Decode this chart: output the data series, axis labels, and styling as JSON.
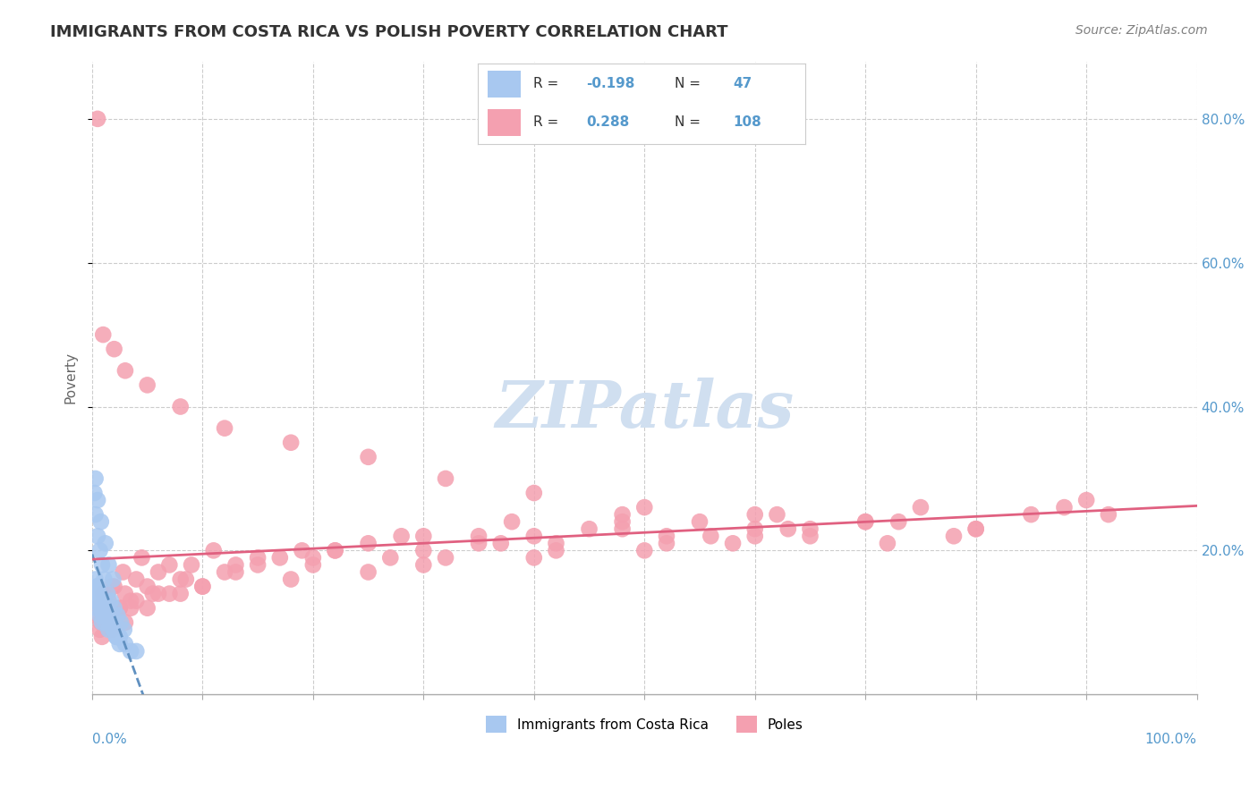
{
  "title": "IMMIGRANTS FROM COSTA RICA VS POLISH POVERTY CORRELATION CHART",
  "source": "Source: ZipAtlas.com",
  "ylabel": "Poverty",
  "blue_R": -0.198,
  "blue_N": 47,
  "pink_R": 0.288,
  "pink_N": 108,
  "blue_color": "#a8c8f0",
  "pink_color": "#f4a0b0",
  "blue_line_color": "#6090c0",
  "pink_line_color": "#e06080",
  "blue_scatter_x": [
    0.002,
    0.003,
    0.004,
    0.005,
    0.006,
    0.007,
    0.008,
    0.009,
    0.01,
    0.012,
    0.015,
    0.018,
    0.02,
    0.022,
    0.025,
    0.003,
    0.004,
    0.006,
    0.008,
    0.01,
    0.013,
    0.016,
    0.019,
    0.022,
    0.025,
    0.03,
    0.035,
    0.04,
    0.002,
    0.003,
    0.005,
    0.007,
    0.009,
    0.011,
    0.014,
    0.017,
    0.02,
    0.023,
    0.026,
    0.029,
    0.003,
    0.005,
    0.008,
    0.012,
    0.015,
    0.019,
    0.024
  ],
  "blue_scatter_y": [
    0.13,
    0.14,
    0.12,
    0.15,
    0.13,
    0.11,
    0.12,
    0.1,
    0.11,
    0.1,
    0.09,
    0.1,
    0.09,
    0.08,
    0.08,
    0.16,
    0.15,
    0.14,
    0.13,
    0.12,
    0.11,
    0.1,
    0.09,
    0.08,
    0.07,
    0.07,
    0.06,
    0.06,
    0.28,
    0.25,
    0.22,
    0.2,
    0.18,
    0.16,
    0.14,
    0.13,
    0.12,
    0.11,
    0.1,
    0.09,
    0.3,
    0.27,
    0.24,
    0.21,
    0.18,
    0.16,
    0.08
  ],
  "pink_scatter_x": [
    0.005,
    0.01,
    0.015,
    0.02,
    0.025,
    0.03,
    0.035,
    0.04,
    0.05,
    0.06,
    0.07,
    0.08,
    0.09,
    0.1,
    0.12,
    0.15,
    0.18,
    0.2,
    0.22,
    0.25,
    0.28,
    0.3,
    0.32,
    0.35,
    0.38,
    0.4,
    0.42,
    0.45,
    0.48,
    0.5,
    0.52,
    0.55,
    0.58,
    0.6,
    0.62,
    0.65,
    0.7,
    0.75,
    0.8,
    0.85,
    0.9,
    0.005,
    0.01,
    0.02,
    0.03,
    0.05,
    0.08,
    0.12,
    0.18,
    0.25,
    0.32,
    0.4,
    0.5,
    0.6,
    0.7,
    0.8,
    0.008,
    0.015,
    0.025,
    0.04,
    0.06,
    0.1,
    0.15,
    0.22,
    0.3,
    0.4,
    0.52,
    0.65,
    0.78,
    0.92,
    0.007,
    0.012,
    0.02,
    0.035,
    0.055,
    0.085,
    0.13,
    0.19,
    0.27,
    0.37,
    0.48,
    0.6,
    0.73,
    0.88,
    0.009,
    0.018,
    0.03,
    0.05,
    0.08,
    0.13,
    0.2,
    0.3,
    0.42,
    0.56,
    0.72,
    0.003,
    0.006,
    0.011,
    0.018,
    0.028,
    0.045,
    0.07,
    0.11,
    0.17,
    0.25,
    0.35,
    0.48,
    0.63
  ],
  "pink_scatter_y": [
    0.12,
    0.14,
    0.13,
    0.15,
    0.12,
    0.14,
    0.13,
    0.16,
    0.15,
    0.17,
    0.14,
    0.16,
    0.18,
    0.15,
    0.17,
    0.19,
    0.16,
    0.18,
    0.2,
    0.17,
    0.22,
    0.2,
    0.19,
    0.21,
    0.24,
    0.22,
    0.21,
    0.23,
    0.25,
    0.2,
    0.22,
    0.24,
    0.21,
    0.23,
    0.25,
    0.22,
    0.24,
    0.26,
    0.23,
    0.25,
    0.27,
    0.8,
    0.5,
    0.48,
    0.45,
    0.43,
    0.4,
    0.37,
    0.35,
    0.33,
    0.3,
    0.28,
    0.26,
    0.25,
    0.24,
    0.23,
    0.1,
    0.11,
    0.12,
    0.13,
    0.14,
    0.15,
    0.18,
    0.2,
    0.22,
    0.19,
    0.21,
    0.23,
    0.22,
    0.25,
    0.09,
    0.1,
    0.11,
    0.12,
    0.14,
    0.16,
    0.18,
    0.2,
    0.19,
    0.21,
    0.23,
    0.22,
    0.24,
    0.26,
    0.08,
    0.09,
    0.1,
    0.12,
    0.14,
    0.17,
    0.19,
    0.18,
    0.2,
    0.22,
    0.21,
    0.11,
    0.12,
    0.13,
    0.15,
    0.17,
    0.19,
    0.18,
    0.2,
    0.19,
    0.21,
    0.22,
    0.24,
    0.23
  ],
  "watermark": "ZIPatlas",
  "watermark_color": "#d0dff0",
  "legend_label_blue": "Immigrants from Costa Rica",
  "legend_label_pink": "Poles",
  "grid_color": "#cccccc",
  "background_color": "#ffffff",
  "title_color": "#333333",
  "axis_label_color": "#5599cc",
  "figsize": [
    14.06,
    8.92
  ],
  "dpi": 100
}
